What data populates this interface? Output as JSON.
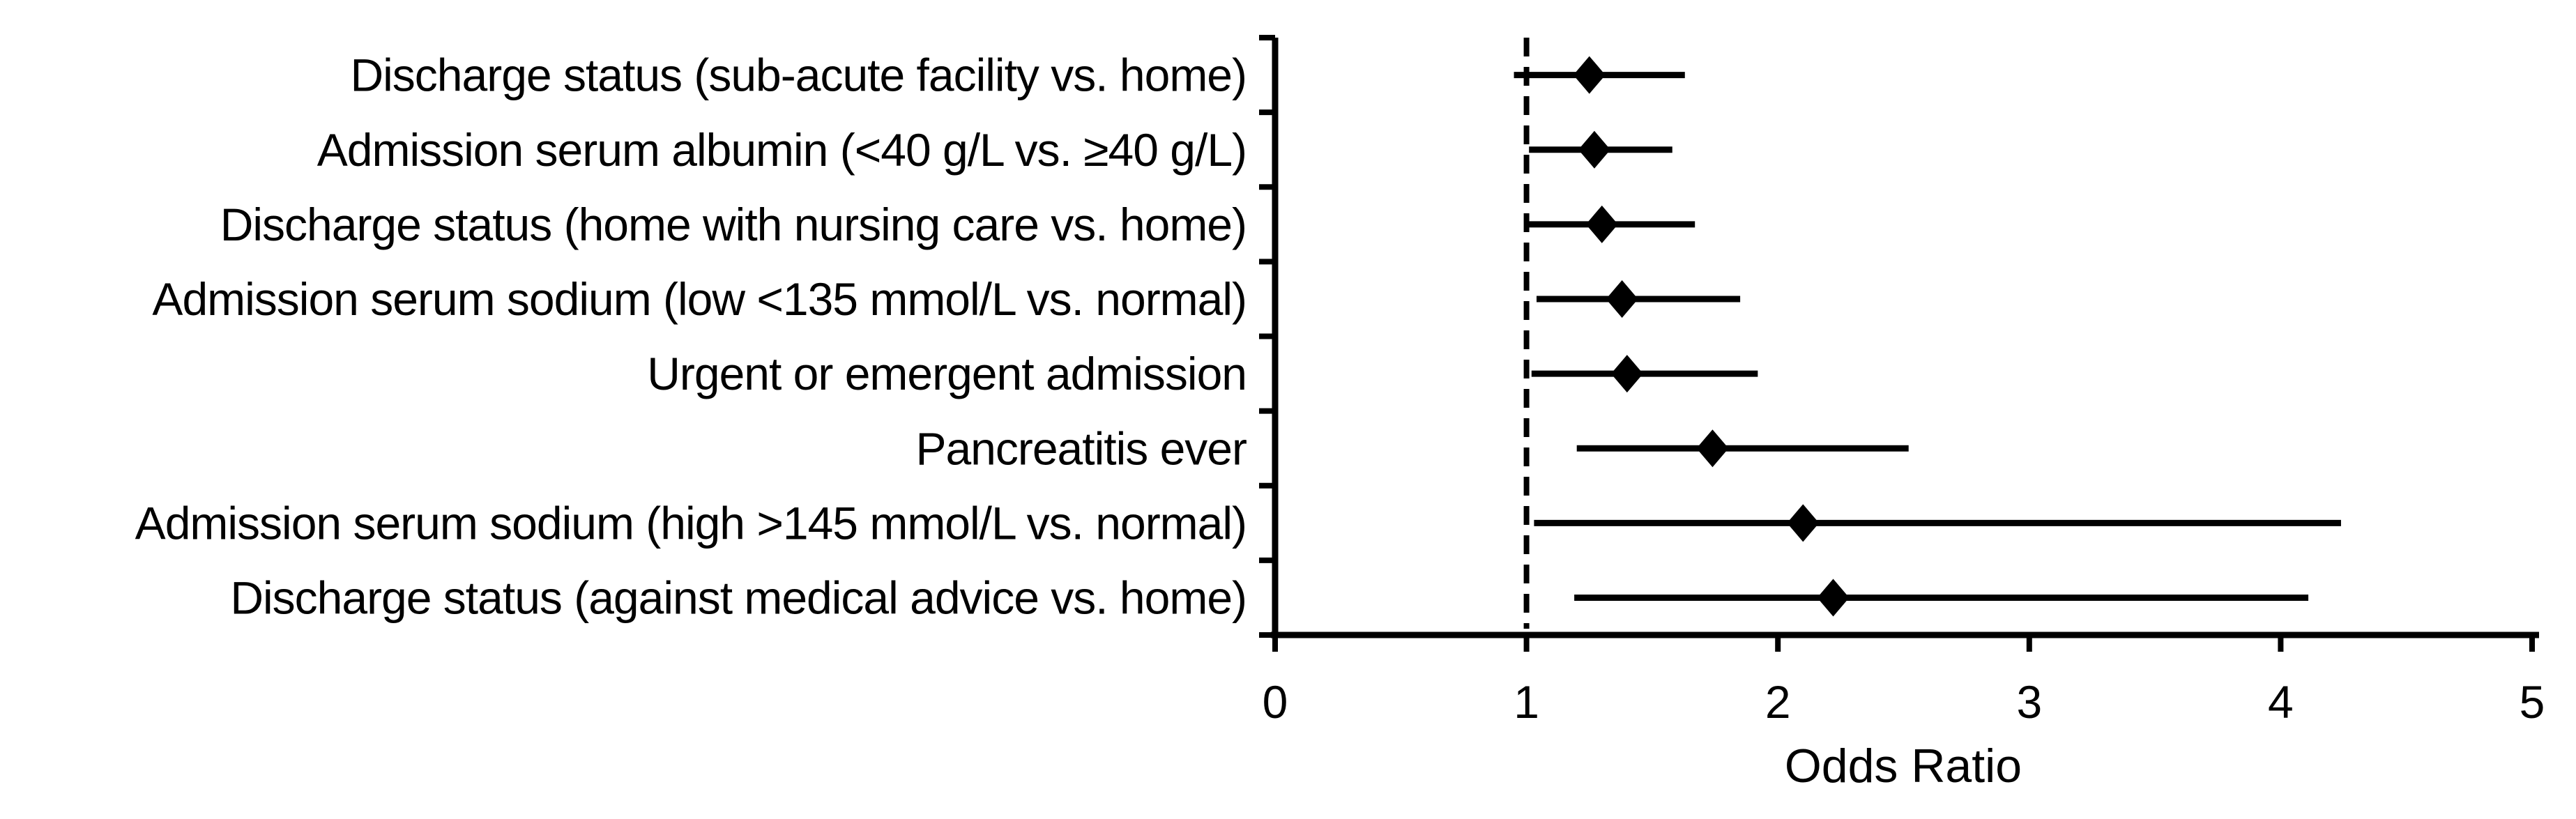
{
  "chart_data": {
    "type": "scatter",
    "subtype": "forest-plot",
    "title": "",
    "xlabel": "Odds Ratio",
    "ylabel": "",
    "xlim": [
      0,
      5
    ],
    "xticks": [
      0,
      1,
      2,
      3,
      4,
      5
    ],
    "reference_line_x": 1,
    "reference_line_style": "dashed",
    "grid": false,
    "legend": "none",
    "marker": "diamond",
    "rows": [
      {
        "label": "Discharge status (sub-acute facility vs. home)",
        "or": 1.25,
        "ci_low": 0.95,
        "ci_high": 1.63
      },
      {
        "label": "Admission serum albumin (<40 g/L vs. ≥40 g/L)",
        "or": 1.27,
        "ci_low": 1.01,
        "ci_high": 1.58
      },
      {
        "label": "Discharge status (home with nursing care vs. home)",
        "or": 1.3,
        "ci_low": 1.0,
        "ci_high": 1.67
      },
      {
        "label": "Admission serum sodium (low <135 mmol/L vs. normal)",
        "or": 1.38,
        "ci_low": 1.04,
        "ci_high": 1.85
      },
      {
        "label": "Urgent or emergent admission",
        "or": 1.4,
        "ci_low": 1.02,
        "ci_high": 1.92
      },
      {
        "label": "Pancreatitis ever",
        "or": 1.74,
        "ci_low": 1.2,
        "ci_high": 2.52
      },
      {
        "label": "Admission serum sodium (high >145 mmol/L vs. normal)",
        "or": 2.1,
        "ci_low": 1.03,
        "ci_high": 4.24
      },
      {
        "label": "Discharge status (against medical advice vs. home)",
        "or": 2.22,
        "ci_low": 1.19,
        "ci_high": 4.11
      }
    ],
    "colors": {
      "marker": "#000000",
      "ci_line": "#000000",
      "axis": "#000000",
      "reference_line": "#000000",
      "background": "#ffffff"
    }
  }
}
